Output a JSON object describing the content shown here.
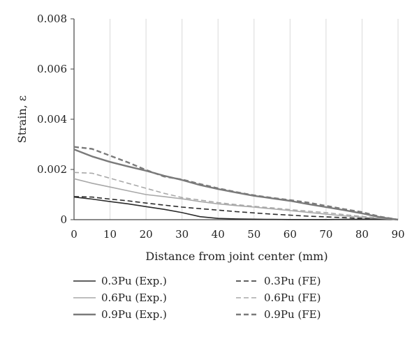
{
  "chart_data": {
    "type": "line",
    "title": "",
    "xlabel": "Distance from joint center (mm)",
    "ylabel": "Strain, ε",
    "xlim": [
      0,
      90
    ],
    "ylim": [
      0,
      0.008
    ],
    "xticks": [
      "0",
      "10",
      "20",
      "30",
      "40",
      "50",
      "60",
      "70",
      "80",
      "90"
    ],
    "yticks": [
      "0",
      "0.002",
      "0.004",
      "0.006",
      "0.008"
    ],
    "grid": "vertical",
    "legend_position": "bottom",
    "series": [
      {
        "name": "0.3Pu (Exp.)",
        "color": "#2b2b2b",
        "dash": "solid",
        "x": [
          0,
          5,
          10,
          15,
          20,
          25,
          30,
          35,
          40,
          45,
          50,
          55,
          60,
          65,
          70,
          75,
          80,
          85,
          90
        ],
        "y": [
          0.0009,
          0.00082,
          0.00072,
          0.00063,
          0.00052,
          0.00041,
          0.00028,
          0.00012,
          5e-05,
          3e-05,
          2e-05,
          1e-05,
          5e-06,
          5e-06,
          5e-06,
          1e-05,
          2e-05,
          3e-05,
          0.0
        ]
      },
      {
        "name": "0.3Pu (FE)",
        "color": "#2b2b2b",
        "dash": "dashed",
        "x": [
          0,
          5,
          10,
          15,
          20,
          25,
          30,
          35,
          40,
          45,
          50,
          55,
          60,
          65,
          70,
          75,
          80,
          85,
          90
        ],
        "y": [
          0.00092,
          0.0009,
          0.00082,
          0.00075,
          0.00066,
          0.00058,
          0.0005,
          0.00044,
          0.00038,
          0.00032,
          0.00027,
          0.00022,
          0.00018,
          0.00014,
          0.00011,
          8e-05,
          5e-05,
          3e-05,
          0.0
        ]
      },
      {
        "name": "0.6Pu (Exp.)",
        "color": "#a8a8a8",
        "dash": "solid",
        "x": [
          0,
          5,
          10,
          15,
          20,
          25,
          30,
          35,
          40,
          45,
          50,
          55,
          60,
          65,
          70,
          75,
          80,
          85,
          90
        ],
        "y": [
          0.00163,
          0.00145,
          0.0013,
          0.00115,
          0.001,
          0.00092,
          0.00083,
          0.00072,
          0.00063,
          0.00056,
          0.0005,
          0.00043,
          0.00036,
          0.00029,
          0.00022,
          0.00015,
          0.0001,
          5e-05,
          0.0
        ]
      },
      {
        "name": "0.6Pu (FE)",
        "color": "#a8a8a8",
        "dash": "dashed",
        "x": [
          0,
          5,
          10,
          15,
          20,
          25,
          30,
          35,
          40,
          45,
          50,
          55,
          60,
          65,
          70,
          75,
          80,
          85,
          90
        ],
        "y": [
          0.00188,
          0.00185,
          0.00165,
          0.00145,
          0.00125,
          0.00105,
          0.00088,
          0.00078,
          0.00068,
          0.0006,
          0.00053,
          0.00047,
          0.0004,
          0.00034,
          0.00028,
          0.0002,
          0.00013,
          6e-05,
          0.0
        ]
      },
      {
        "name": "0.9Pu (Exp.)",
        "color": "#7a7a7a",
        "dash": "solid",
        "x": [
          0,
          5,
          10,
          15,
          20,
          25,
          30,
          35,
          40,
          45,
          50,
          55,
          60,
          65,
          70,
          75,
          80,
          85,
          90
        ],
        "y": [
          0.0028,
          0.00252,
          0.0023,
          0.00212,
          0.00195,
          0.00175,
          0.00158,
          0.00138,
          0.00122,
          0.00108,
          0.00095,
          0.00085,
          0.00075,
          0.00062,
          0.0005,
          0.00038,
          0.00025,
          0.0001,
          0.0
        ]
      },
      {
        "name": "0.9Pu (FE)",
        "color": "#7a7a7a",
        "dash": "dashed",
        "x": [
          0,
          5,
          10,
          15,
          20,
          25,
          30,
          35,
          40,
          45,
          50,
          55,
          60,
          65,
          70,
          75,
          80,
          85,
          90
        ],
        "y": [
          0.0029,
          0.00282,
          0.00255,
          0.00228,
          0.00198,
          0.00172,
          0.0016,
          0.00142,
          0.00125,
          0.0011,
          0.00097,
          0.00087,
          0.00078,
          0.00068,
          0.00055,
          0.00042,
          0.0003,
          0.00012,
          0.0
        ]
      }
    ]
  }
}
